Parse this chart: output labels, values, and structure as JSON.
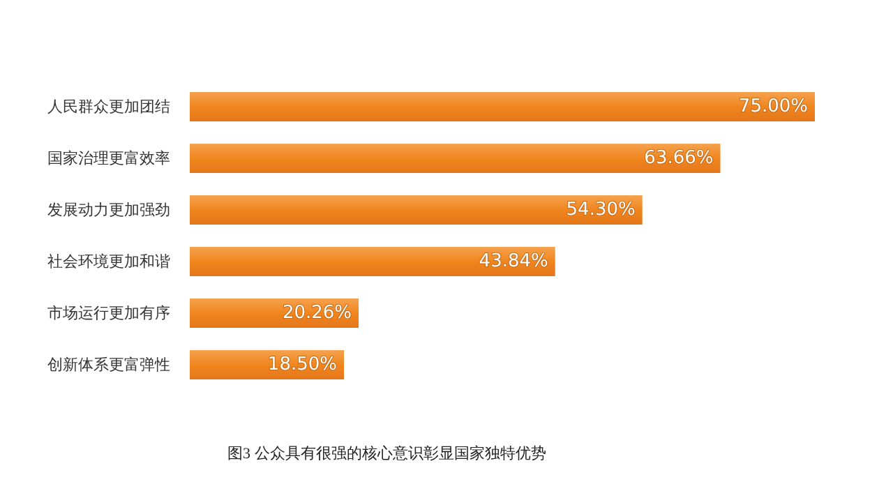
{
  "chart_data": {
    "type": "bar",
    "orientation": "horizontal",
    "title": "图3 公众具有很强的核心意识彰显国家独特优势",
    "categories": [
      "人民群众更加团结",
      "国家治理更富效率",
      "发展动力更加强劲",
      "社会环境更加和谐",
      "市场运行更加有序",
      "创新体系更富弹性"
    ],
    "values": [
      75.0,
      63.66,
      54.3,
      43.84,
      20.26,
      18.5
    ],
    "value_labels": [
      "75.00%",
      "63.66%",
      "54.30%",
      "43.84%",
      "20.26%",
      "18.50%"
    ],
    "color": "#f0861e"
  }
}
